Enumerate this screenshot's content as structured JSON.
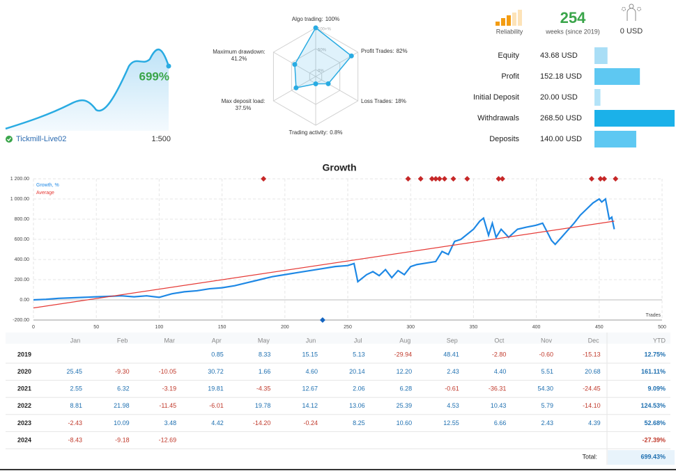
{
  "summary": {
    "growth": "699%",
    "account": "Tickmill-Live02",
    "leverage": "1:500",
    "reliability": "Reliability",
    "weeks": 254,
    "weeks_label": "weeks (since 2019)",
    "subscribers": "0 USD"
  },
  "chart_data": [
    {
      "type": "radar",
      "rlim": [
        0,
        100
      ],
      "rings": [
        {
          "value": 100,
          "label": "100+%"
        },
        {
          "value": 50,
          "label": "50%"
        },
        {
          "value": 0,
          "label": "0%"
        }
      ],
      "axes": [
        {
          "label": "Algo trading:",
          "value": 100,
          "value_label": "100%"
        },
        {
          "label": "Profit Trades:",
          "value": 82,
          "value_label": "82%"
        },
        {
          "label": "Loss Trades:",
          "value": 18,
          "value_label": "18%"
        },
        {
          "label": "Trading activity:",
          "value": 0.8,
          "value_label": "0.8%"
        },
        {
          "label": "Max deposit load:",
          "value": 37.5,
          "value_label": "37.5%"
        },
        {
          "label": "Maximum drawdown:",
          "value": 41.2,
          "value_label": "41.2%"
        }
      ],
      "color": "#29abe2"
    },
    {
      "type": "bar",
      "orientation": "horizontal",
      "categories": [
        "Equity",
        "Profit",
        "Initial Deposit",
        "Withdrawals",
        "Deposits"
      ],
      "values": [
        43.68,
        152.18,
        20.0,
        268.5,
        140.0
      ],
      "value_labels": [
        "43.68 USD",
        "152.18 USD",
        "20.00 USD",
        "268.50 USD",
        "140.00 USD"
      ],
      "colors": [
        "#a9def6",
        "#5ec8f2",
        "#b3e3f8",
        "#1bb1e9",
        "#5ec8f2"
      ]
    },
    {
      "type": "line",
      "title": "Growth",
      "x_label": "Trades",
      "grid": true,
      "xlim": [
        0,
        500
      ],
      "xticks": [
        0,
        50,
        100,
        150,
        200,
        250,
        300,
        350,
        400,
        450,
        500
      ],
      "ylim": [
        -200,
        1200
      ],
      "yticks": [
        {
          "value": -200,
          "label": "-200.00"
        },
        {
          "value": 0,
          "label": "0.00"
        },
        {
          "value": 200,
          "label": "200.00"
        },
        {
          "value": 400,
          "label": "400.00"
        },
        {
          "value": 600,
          "label": "600.00"
        },
        {
          "value": 800,
          "label": "800.00"
        },
        {
          "value": 1000,
          "label": "1 000.00"
        },
        {
          "value": 1200,
          "label": "1 200.00"
        }
      ],
      "series": [
        {
          "name": "Growth, %",
          "color": "#1e88e5",
          "x": [
            0,
            10,
            20,
            30,
            40,
            50,
            60,
            70,
            80,
            90,
            100,
            110,
            120,
            130,
            140,
            150,
            160,
            170,
            180,
            190,
            200,
            210,
            220,
            230,
            240,
            250,
            255,
            258,
            265,
            270,
            275,
            280,
            285,
            290,
            295,
            300,
            305,
            310,
            320,
            325,
            330,
            335,
            340,
            345,
            350,
            355,
            358,
            362,
            365,
            368,
            372,
            378,
            385,
            392,
            400,
            405,
            410,
            412,
            415,
            420,
            425,
            430,
            435,
            440,
            445,
            450,
            452,
            455,
            458,
            460,
            462
          ],
          "values": [
            0,
            5,
            15,
            20,
            25,
            30,
            35,
            40,
            30,
            40,
            25,
            60,
            80,
            90,
            110,
            120,
            140,
            170,
            200,
            230,
            250,
            270,
            290,
            310,
            330,
            340,
            360,
            180,
            250,
            280,
            240,
            300,
            220,
            290,
            250,
            330,
            350,
            360,
            380,
            480,
            450,
            580,
            600,
            650,
            700,
            780,
            810,
            640,
            760,
            620,
            700,
            620,
            700,
            720,
            740,
            760,
            640,
            590,
            550,
            620,
            690,
            760,
            840,
            900,
            960,
            1000,
            970,
            1000,
            800,
            820,
            700
          ]
        },
        {
          "name": "Average",
          "color": "#e53935",
          "x": [
            0,
            462
          ],
          "values": [
            -80,
            780
          ]
        }
      ],
      "markers": [
        {
          "position": "top",
          "color": "#c62828",
          "x": [
            183,
            298,
            308,
            317,
            320,
            323,
            327,
            334,
            345,
            370,
            373,
            444,
            451,
            454,
            463
          ]
        },
        {
          "position": "bottom",
          "color": "#1565c0",
          "x": [
            230
          ]
        }
      ]
    }
  ],
  "table": {
    "columns": [
      "Jan",
      "Feb",
      "Mar",
      "Apr",
      "May",
      "Jun",
      "Jul",
      "Aug",
      "Sep",
      "Oct",
      "Nov",
      "Dec",
      "YTD"
    ],
    "rows": [
      {
        "year": "2019",
        "cells": [
          null,
          null,
          null,
          "0.85",
          "8.33",
          "15.15",
          "5.13",
          "-29.94",
          "48.41",
          "-2.80",
          "-0.60",
          "-15.13",
          "12.75%"
        ]
      },
      {
        "year": "2020",
        "cells": [
          "25.45",
          "-9.30",
          "-10.05",
          "30.72",
          "1.66",
          "4.60",
          "20.14",
          "12.20",
          "2.43",
          "4.40",
          "5.51",
          "20.68",
          "161.11%"
        ]
      },
      {
        "year": "2021",
        "cells": [
          "2.55",
          "6.32",
          "-3.19",
          "19.81",
          "-4.35",
          "12.67",
          "2.06",
          "6.28",
          "-0.61",
          "-36.31",
          "54.30",
          "-24.45",
          "9.09%"
        ]
      },
      {
        "year": "2022",
        "cells": [
          "8.81",
          "21.98",
          "-11.45",
          "-6.01",
          "19.78",
          "14.12",
          "13.06",
          "25.39",
          "4.53",
          "10.43",
          "5.79",
          "-14.10",
          "124.53%"
        ]
      },
      {
        "year": "2023",
        "cells": [
          "-2.43",
          "10.09",
          "3.48",
          "4.42",
          "-14.20",
          "-0.24",
          "8.25",
          "10.60",
          "12.55",
          "6.66",
          "2.43",
          "4.39",
          "52.68%"
        ]
      },
      {
        "year": "2024",
        "cells": [
          "-8.43",
          "-9.18",
          "-12.69",
          null,
          null,
          null,
          null,
          null,
          null,
          null,
          null,
          null,
          "-27.39%"
        ]
      }
    ],
    "total": {
      "label": "Total:",
      "value": "699.43%"
    }
  }
}
